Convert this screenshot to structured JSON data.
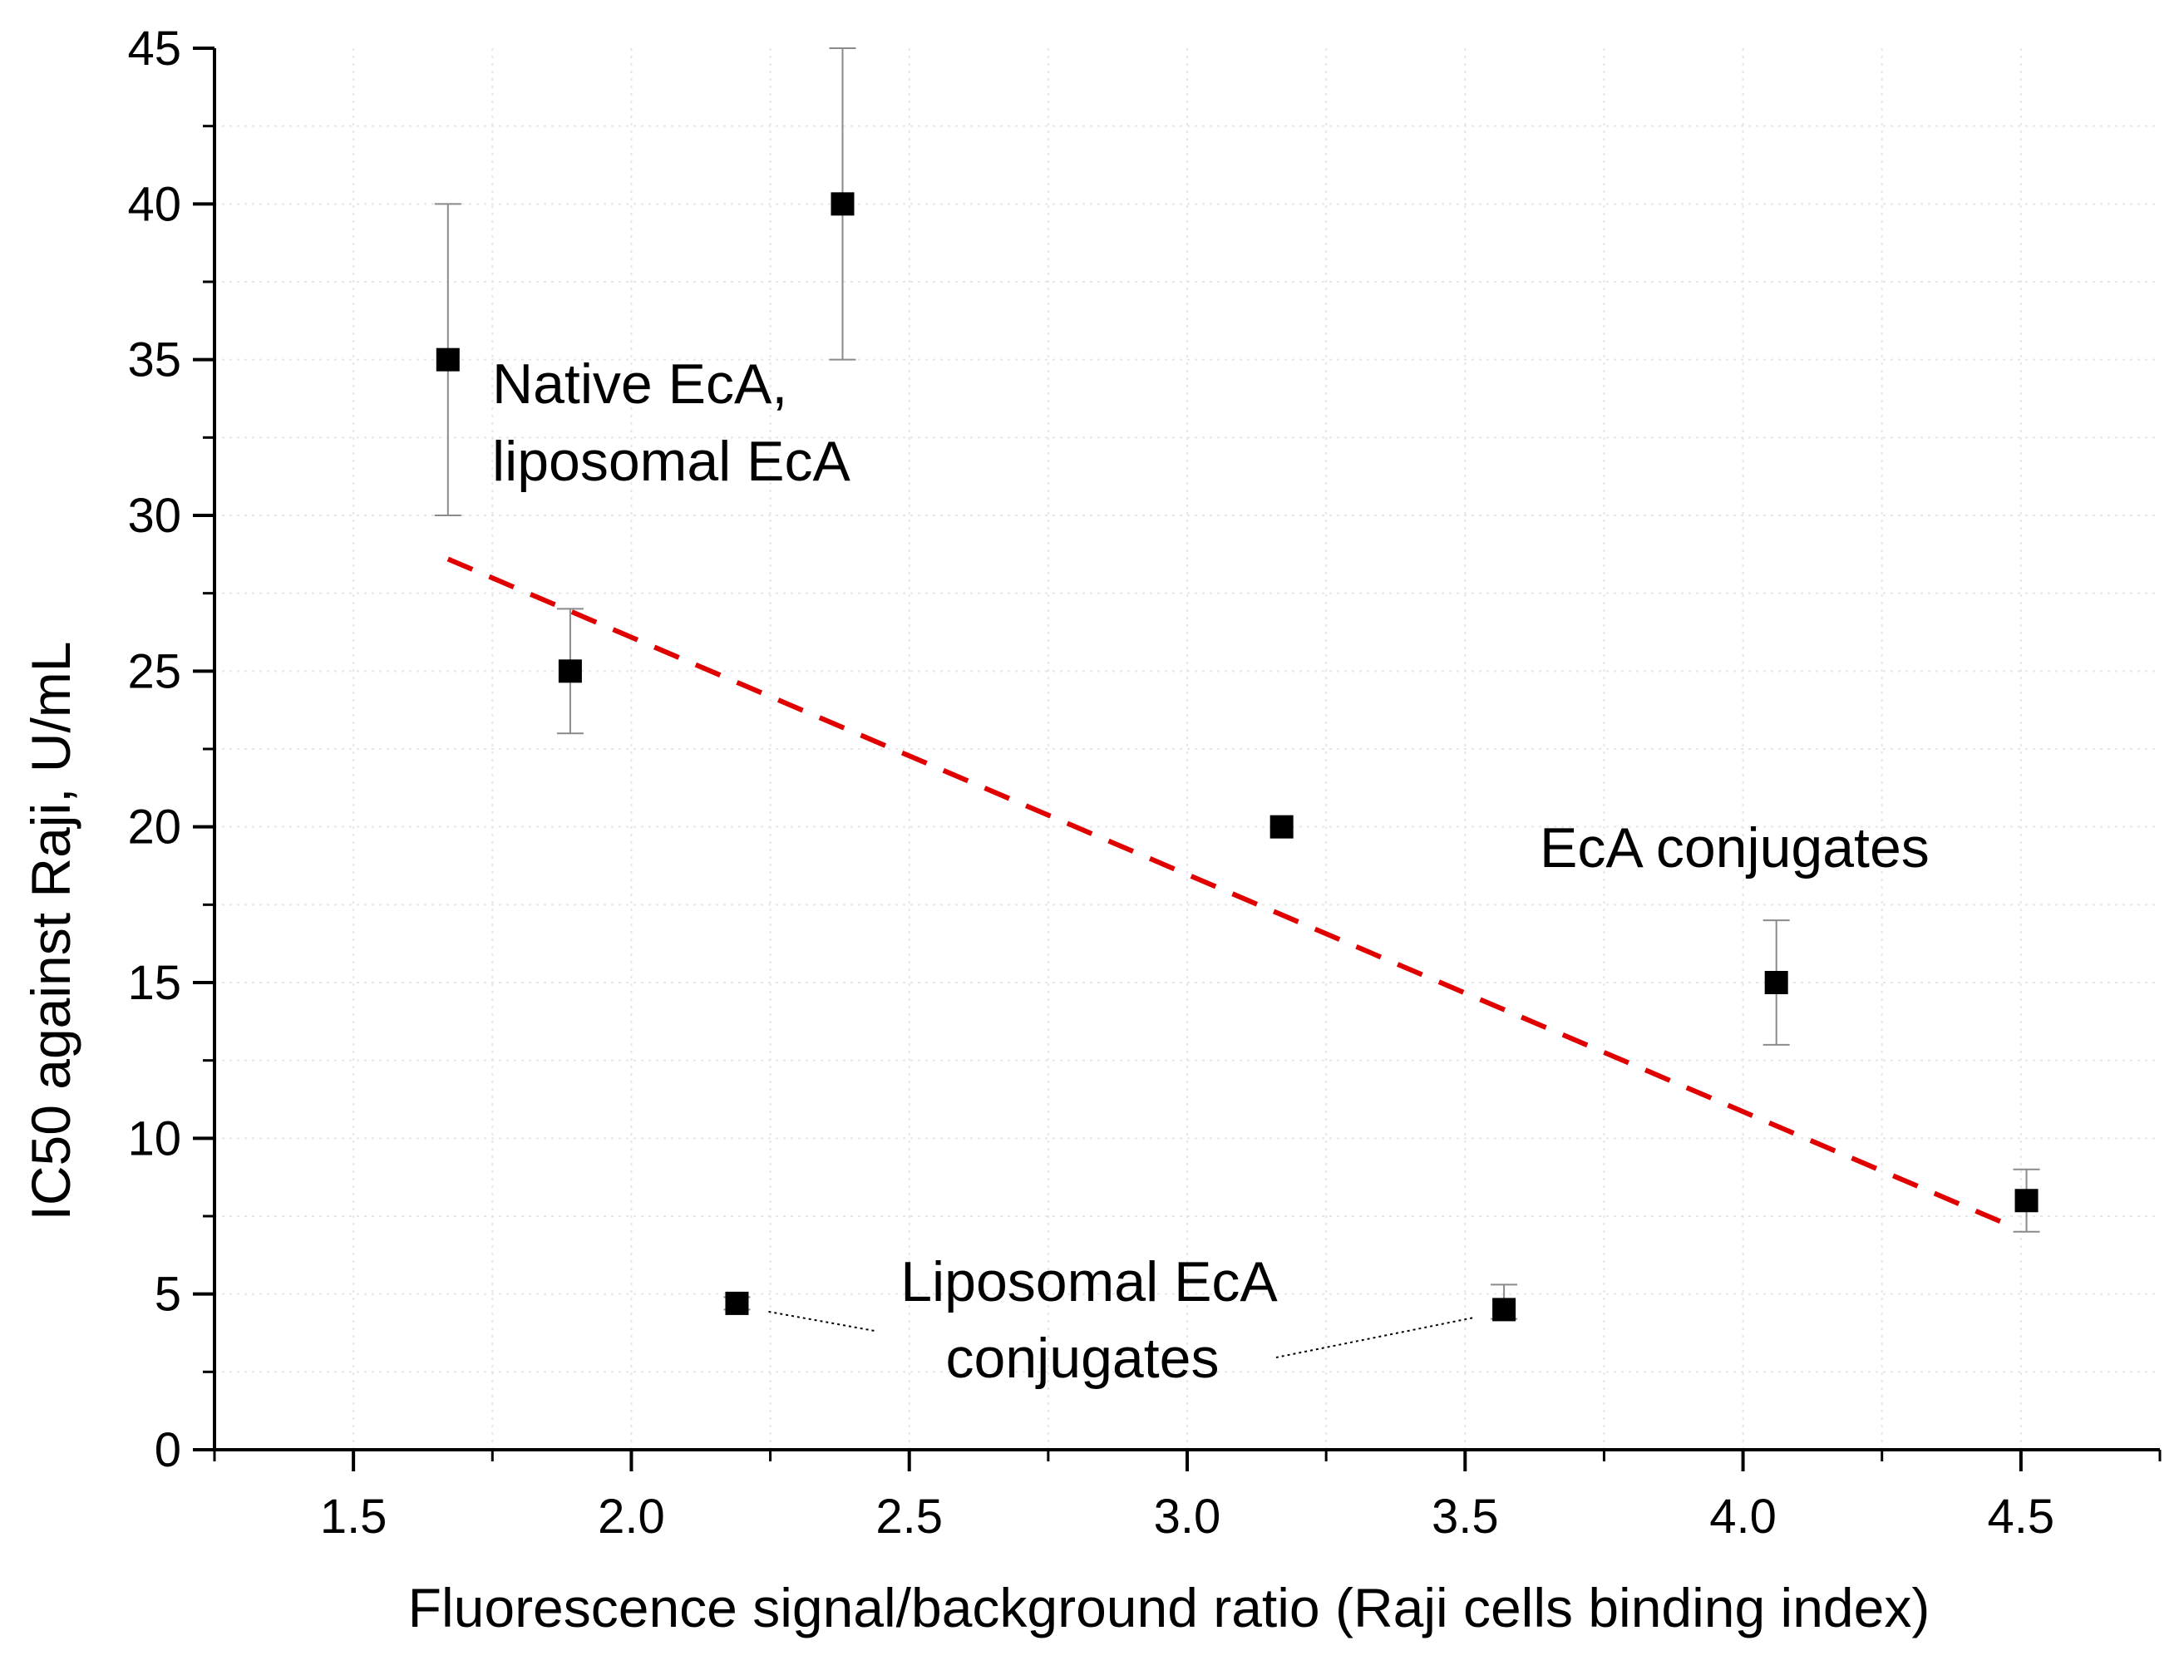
{
  "chart_data": {
    "type": "scatter",
    "xlabel": "Fluorescence signal/background ratio (Raji cells binding index)",
    "ylabel": "IC50 against Raji, U/mL",
    "xlim": [
      1.25,
      4.75
    ],
    "ylim": [
      0,
      45
    ],
    "x_ticks": [
      1.5,
      2.0,
      2.5,
      3.0,
      3.5,
      4.0,
      4.5
    ],
    "x_tick_labels": [
      "1.5",
      "2.0",
      "2.5",
      "3.0",
      "3.5",
      "4.0",
      "4.5"
    ],
    "y_ticks": [
      0,
      5,
      10,
      15,
      20,
      25,
      30,
      35,
      40,
      45
    ],
    "y_tick_labels": [
      "0",
      "5",
      "10",
      "15",
      "20",
      "25",
      "30",
      "35",
      "40",
      "45"
    ],
    "grid": true,
    "points": [
      {
        "x": 1.67,
        "y": 35,
        "err_low": 5,
        "err_high": 5
      },
      {
        "x": 2.38,
        "y": 40,
        "err_low": 5,
        "err_high": 5
      },
      {
        "x": 1.89,
        "y": 25,
        "err_low": 2,
        "err_high": 2
      },
      {
        "x": 3.17,
        "y": 20,
        "err_low": 0,
        "err_high": 0
      },
      {
        "x": 4.06,
        "y": 15,
        "err_low": 2,
        "err_high": 2
      },
      {
        "x": 4.51,
        "y": 8,
        "err_low": 1,
        "err_high": 1
      },
      {
        "x": 2.19,
        "y": 4.7,
        "err_low": 0.2,
        "err_high": 0.2
      },
      {
        "x": 3.57,
        "y": 4.5,
        "err_low": 0.3,
        "err_high": 0.8
      }
    ],
    "trendline": {
      "style": "dashed",
      "color": "#e00000",
      "x": [
        1.67,
        4.48
      ],
      "y": [
        28.6,
        7.2
      ]
    },
    "annotations": [
      {
        "lines": [
          "Native EcA,",
          "liposomal EcA"
        ]
      },
      {
        "lines": [
          "EcA conjugates"
        ]
      },
      {
        "lines": [
          "Liposomal EcA",
          "conjugates"
        ]
      }
    ]
  }
}
